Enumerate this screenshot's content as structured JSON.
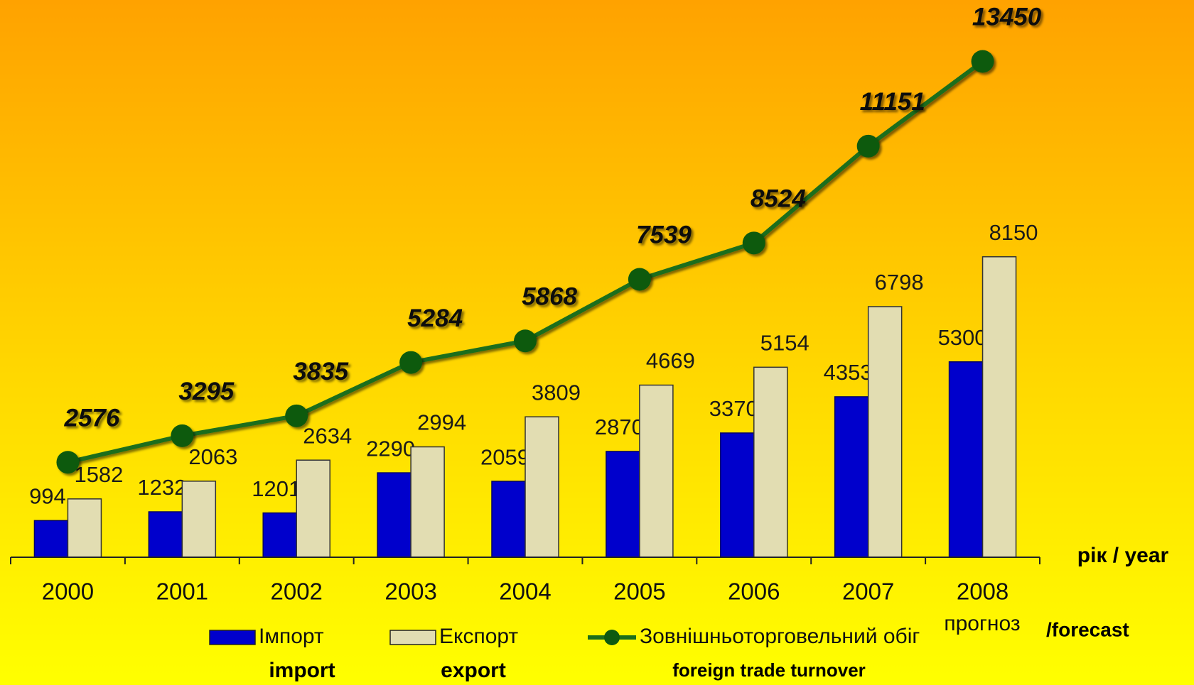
{
  "chart_data": {
    "type": "bar_line",
    "categories": [
      "2000",
      "2001",
      "2002",
      "2003",
      "2004",
      "2005",
      "2006",
      "2007",
      "2008"
    ],
    "series": [
      {
        "name": "Імпорт",
        "type": "bar",
        "color": "#0000cc",
        "values": [
          994,
          1232,
          1201,
          2290,
          2059,
          2870,
          3370,
          4353,
          5300
        ]
      },
      {
        "name": "Експорт",
        "type": "bar",
        "color": "#e2ddb2",
        "values": [
          1582,
          2063,
          2634,
          2994,
          3809,
          4669,
          5154,
          6798,
          8150
        ]
      },
      {
        "name": "Зовнішньоторговельний обіг",
        "type": "line",
        "color": "#1b6e1b",
        "values": [
          2576,
          3295,
          3835,
          5284,
          5868,
          7539,
          8524,
          11151,
          13450
        ]
      }
    ],
    "legend_translations": [
      "import",
      "export",
      "foreign trade turnover"
    ],
    "x_label": "рік / year",
    "annotations": [
      "прогноз",
      "/forecast"
    ],
    "ylim": [
      0,
      15000
    ]
  }
}
